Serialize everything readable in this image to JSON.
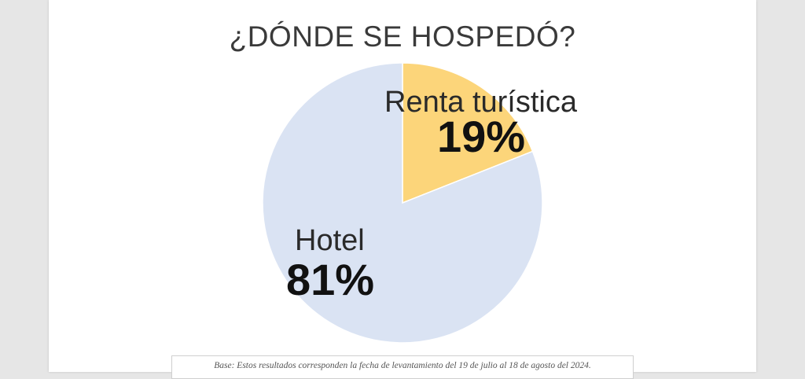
{
  "chart_data": {
    "type": "pie",
    "title": "¿DÓNDE SE HOSPEDÓ?",
    "slices": [
      {
        "name": "Renta turística",
        "value": 19,
        "label": "19%",
        "color": "#fcd57a"
      },
      {
        "name": "Hotel",
        "value": 81,
        "label": "81%",
        "color": "#dae3f3"
      }
    ]
  },
  "footnote": "Base: Estos resultados corresponden la fecha de levantamiento del 19 de julio al 18 de agosto del 2024."
}
